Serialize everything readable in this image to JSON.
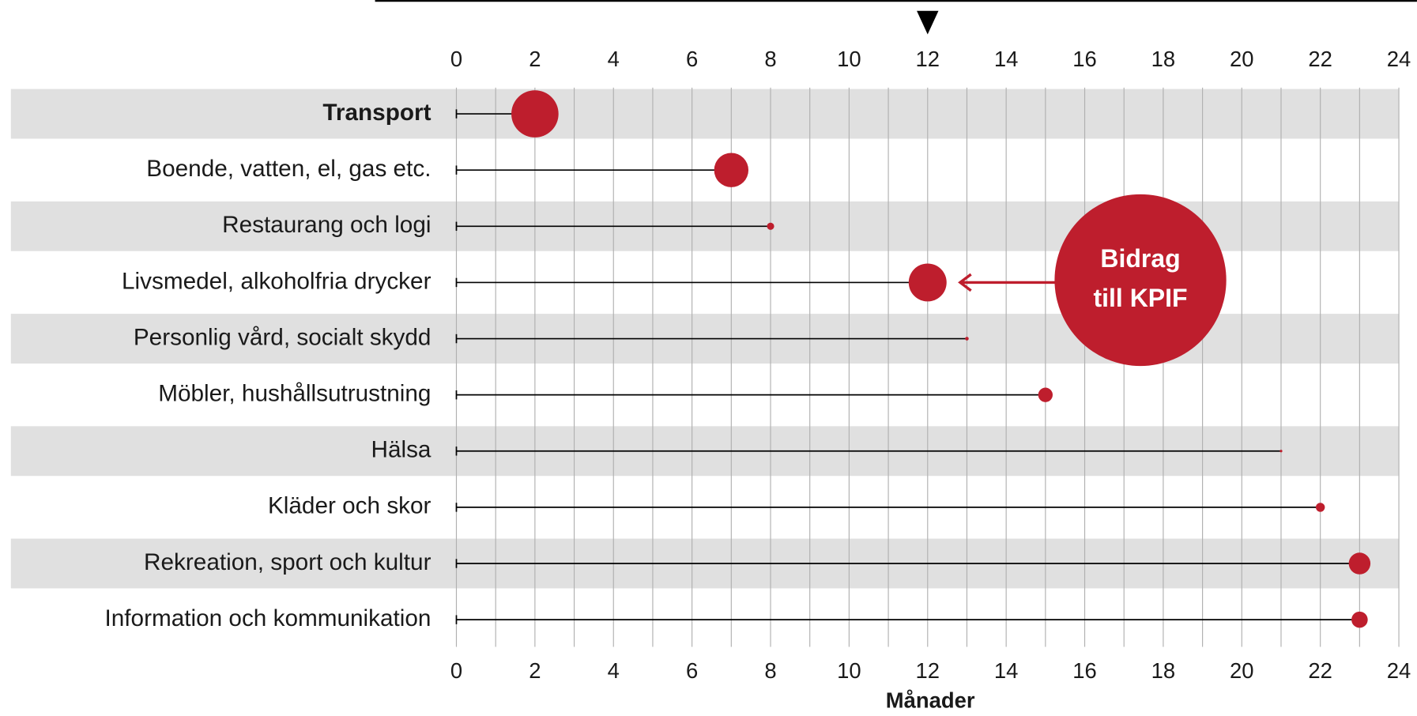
{
  "chart_data": {
    "type": "lollipop",
    "categories": [
      "Transport",
      "Boende, vatten, el, gas etc.",
      "Restaurang och logi",
      "Livsmedel, alkoholfria drycker",
      "Personlig vård, socialt skydd",
      "Möbler, hushållsutrustning",
      "Hälsa",
      "Kläder och skor",
      "Rekreation, sport och kultur",
      "Information och kommunikation"
    ],
    "values": [
      2,
      7,
      8,
      12,
      13,
      15,
      21,
      22,
      23,
      23
    ],
    "sizes": [
      6.8,
      3.6,
      0.16,
      4.4,
      0.04,
      0.64,
      0.02,
      0.25,
      1.44,
      0.81
    ],
    "color": "#be1e2d",
    "highlight": "Transport",
    "xlim": [
      0,
      24
    ],
    "xticks": [
      0,
      2,
      4,
      6,
      8,
      10,
      12,
      14,
      16,
      18,
      20,
      22,
      24
    ],
    "minor_xticks": [
      1,
      3,
      5,
      7,
      9,
      11,
      13,
      15,
      17,
      19,
      21,
      23
    ],
    "marker": 12,
    "x_label": "Månader",
    "annotation": [
      "Bidrag",
      "till KPIF"
    ],
    "annotation_target": 3,
    "banded_rows": true
  }
}
